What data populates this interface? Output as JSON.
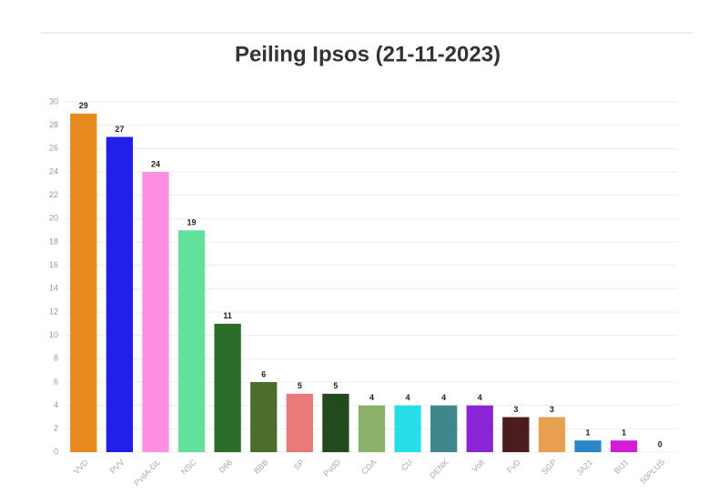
{
  "chart_data": {
    "type": "bar",
    "title": "Peiling Ipsos (21-11-2023)",
    "categories": [
      "VVD",
      "PVV",
      "PvdA-GL",
      "NSC",
      "D66",
      "BBB",
      "SP",
      "PvdD",
      "CDA",
      "CU",
      "DENK",
      "Volt",
      "FvD",
      "SGP",
      "JA21",
      "BIJ1",
      "50PLUS"
    ],
    "values": [
      29,
      27,
      24,
      19,
      11,
      6,
      5,
      5,
      4,
      4,
      4,
      4,
      3,
      3,
      1,
      1,
      0
    ],
    "colors": [
      "#e68a1e",
      "#2020e8",
      "#ff8fe0",
      "#63e09b",
      "#2a6e2a",
      "#4b6e2c",
      "#e87a7a",
      "#234a1d",
      "#8ab06a",
      "#26dfe6",
      "#3f878a",
      "#8a24d6",
      "#4a1c1e",
      "#e6a050",
      "#2a86c6",
      "#d21ed2",
      "#8a1ea0"
    ],
    "ylim": [
      0,
      30
    ],
    "yticks": [
      0,
      2,
      4,
      6,
      8,
      10,
      12,
      14,
      16,
      18,
      20,
      22,
      24,
      26,
      28,
      30
    ],
    "grid": true
  }
}
